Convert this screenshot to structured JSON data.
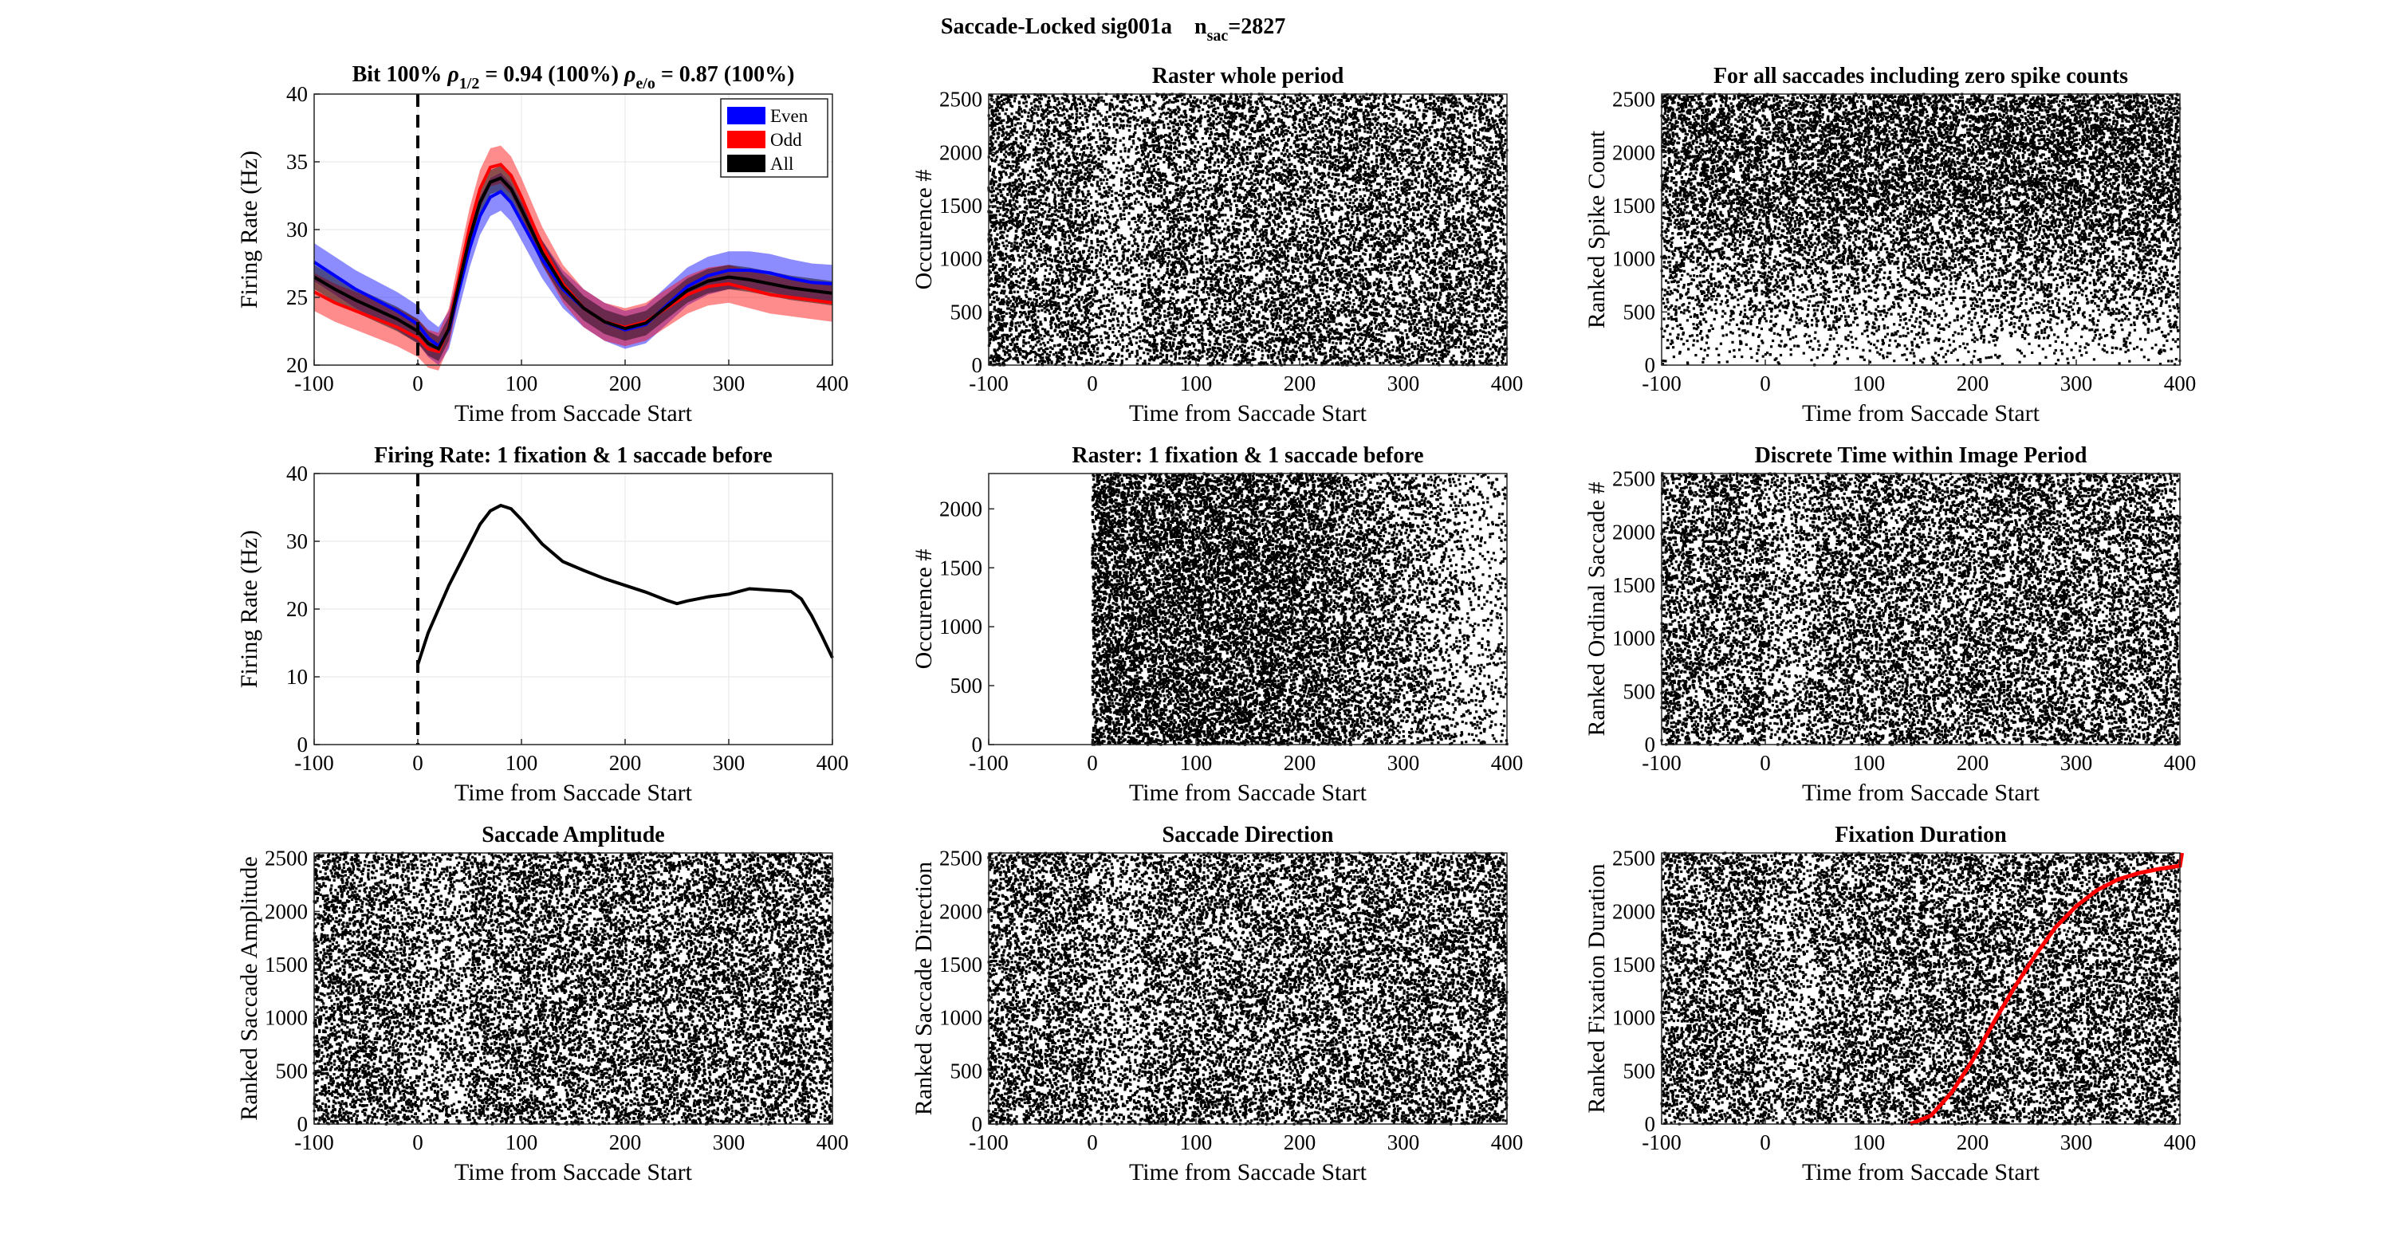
{
  "figure": {
    "title_main": "Saccade-Locked sig001a",
    "title_n": "n",
    "title_n_sub": "sac",
    "title_n_value": "=2827"
  },
  "chart_data": [
    {
      "id": "p1",
      "type": "line",
      "title_parts": [
        "Bit 100%",
        "ρ",
        "1/2",
        "= 0.94 (100%)",
        "ρ",
        "e/o",
        "= 0.87 (100%)"
      ],
      "xlabel": "Time from Saccade Start",
      "ylabel": "Firing Rate (Hz)",
      "xlim": [
        -100,
        400
      ],
      "ylim": [
        20,
        40
      ],
      "xticks": [
        -100,
        0,
        100,
        200,
        300,
        400
      ],
      "yticks": [
        20,
        25,
        30,
        35,
        40
      ],
      "grid": true,
      "vline_x": 0,
      "legend": "top-right",
      "x": [
        -100,
        -80,
        -60,
        -40,
        -20,
        0,
        10,
        20,
        30,
        40,
        50,
        60,
        70,
        80,
        90,
        100,
        120,
        140,
        160,
        180,
        200,
        220,
        240,
        260,
        280,
        300,
        320,
        340,
        360,
        380,
        400
      ],
      "series": [
        {
          "name": "Even",
          "color": "#0000ff",
          "band": 1.4,
          "values": [
            27.6,
            26.6,
            25.6,
            24.8,
            24.0,
            23.0,
            22.0,
            21.4,
            22.6,
            25.6,
            28.6,
            31.0,
            32.4,
            32.8,
            32.0,
            30.6,
            27.8,
            25.6,
            24.2,
            23.2,
            22.6,
            23.0,
            24.4,
            25.8,
            26.6,
            27.0,
            27.0,
            26.8,
            26.4,
            26.1,
            26.0
          ]
        },
        {
          "name": "Odd",
          "color": "#ff0000",
          "band": 1.4,
          "values": [
            25.4,
            24.6,
            24.0,
            23.4,
            22.8,
            22.0,
            21.2,
            21.0,
            22.8,
            26.6,
            30.2,
            33.0,
            34.6,
            34.8,
            34.0,
            32.4,
            28.8,
            26.0,
            24.2,
            23.2,
            22.8,
            23.2,
            24.2,
            25.2,
            25.8,
            26.0,
            25.6,
            25.2,
            25.0,
            24.8,
            24.6
          ]
        },
        {
          "name": "All",
          "color": "#000000",
          "band": 0.9,
          "values": [
            26.5,
            25.6,
            24.8,
            24.1,
            23.4,
            22.5,
            21.6,
            21.2,
            22.7,
            26.1,
            29.4,
            32.0,
            33.5,
            33.8,
            33.0,
            31.5,
            28.3,
            25.8,
            24.2,
            23.2,
            22.7,
            23.1,
            24.3,
            25.5,
            26.2,
            26.5,
            26.3,
            26.0,
            25.7,
            25.5,
            25.3
          ]
        }
      ]
    },
    {
      "id": "p2",
      "type": "scatter",
      "title": "Raster whole period",
      "xlabel": "Time from Saccade Start",
      "ylabel": "Occurence #",
      "xlim": [
        -100,
        400
      ],
      "ylim": [
        0,
        2550
      ],
      "xticks": [
        -100,
        0,
        100,
        200,
        300,
        400
      ],
      "yticks": [
        0,
        500,
        1000,
        1500,
        2000,
        2500
      ],
      "n_trials": 2550,
      "pattern": "uniform"
    },
    {
      "id": "p3",
      "type": "scatter",
      "title": "For all saccades including zero spike counts",
      "xlabel": "Time from Saccade Start",
      "ylabel": "Ranked Spike Count",
      "xlim": [
        -100,
        400
      ],
      "ylim": [
        0,
        2550
      ],
      "xticks": [
        -100,
        0,
        100,
        200,
        300,
        400
      ],
      "yticks": [
        0,
        500,
        1000,
        1500,
        2000,
        2500
      ],
      "n_trials": 2550,
      "pattern": "ranked-count"
    },
    {
      "id": "p4",
      "type": "line",
      "title": "Firing Rate: 1 fixation & 1 saccade before",
      "xlabel": "Time from Saccade Start",
      "ylabel": "Firing Rate (Hz)",
      "xlim": [
        -100,
        400
      ],
      "ylim": [
        0,
        40
      ],
      "xticks": [
        -100,
        0,
        100,
        200,
        300,
        400
      ],
      "yticks": [
        0,
        10,
        20,
        30,
        40
      ],
      "grid": true,
      "vline_x": 0,
      "x": [
        0,
        10,
        20,
        30,
        40,
        50,
        60,
        70,
        80,
        90,
        100,
        120,
        140,
        160,
        180,
        200,
        220,
        240,
        250,
        260,
        280,
        300,
        320,
        340,
        360,
        370,
        380,
        390,
        400
      ],
      "series": [
        {
          "color": "#000000",
          "values": [
            11.8,
            16.5,
            20.0,
            23.5,
            26.5,
            29.5,
            32.5,
            34.5,
            35.3,
            34.8,
            33.2,
            29.6,
            27.0,
            25.7,
            24.5,
            23.5,
            22.5,
            21.3,
            20.8,
            21.2,
            21.8,
            22.2,
            23.0,
            22.8,
            22.6,
            21.5,
            19.0,
            16.0,
            12.8
          ]
        }
      ]
    },
    {
      "id": "p5",
      "type": "scatter",
      "title": "Raster: 1 fixation & 1 saccade before",
      "xlabel": "Time from Saccade Start",
      "ylabel": "Occurence #",
      "xlim": [
        -100,
        400
      ],
      "ylim": [
        0,
        2300
      ],
      "xticks": [
        -100,
        0,
        100,
        200,
        300,
        400
      ],
      "yticks": [
        0,
        500,
        1000,
        1500,
        2000
      ],
      "n_trials": 2300,
      "pattern": "starts-at-zero"
    },
    {
      "id": "p6",
      "type": "scatter",
      "title": "Discrete Time within Image Period",
      "xlabel": "Time from Saccade Start",
      "ylabel": "Ranked Ordinal Saccade #",
      "xlim": [
        -100,
        400
      ],
      "ylim": [
        0,
        2550
      ],
      "xticks": [
        -100,
        0,
        100,
        200,
        300,
        400
      ],
      "yticks": [
        0,
        500,
        1000,
        1500,
        2000,
        2500
      ],
      "n_trials": 2550,
      "pattern": "uniform"
    },
    {
      "id": "p7",
      "type": "scatter",
      "title": "Saccade Amplitude",
      "xlabel": "Time from Saccade Start",
      "ylabel": "Ranked Saccade Amplitude",
      "xlim": [
        -100,
        400
      ],
      "ylim": [
        0,
        2550
      ],
      "xticks": [
        -100,
        0,
        100,
        200,
        300,
        400
      ],
      "yticks": [
        0,
        500,
        1000,
        1500,
        2000,
        2500
      ],
      "n_trials": 2550,
      "pattern": "uniform"
    },
    {
      "id": "p8",
      "type": "scatter",
      "title": "Saccade Direction",
      "xlabel": "Time from Saccade Start",
      "ylabel": "Ranked Saccade Direction",
      "xlim": [
        -100,
        400
      ],
      "ylim": [
        0,
        2550
      ],
      "xticks": [
        -100,
        0,
        100,
        200,
        300,
        400
      ],
      "yticks": [
        0,
        500,
        1000,
        1500,
        2000,
        2500
      ],
      "n_trials": 2550,
      "pattern": "uniform"
    },
    {
      "id": "p9",
      "type": "scatter",
      "title": "Fixation Duration",
      "xlabel": "Time from Saccade Start",
      "ylabel": "Ranked Fixation Duration",
      "xlim": [
        -100,
        400
      ],
      "ylim": [
        0,
        2550
      ],
      "xticks": [
        -100,
        0,
        100,
        200,
        300,
        400
      ],
      "yticks": [
        0,
        500,
        1000,
        1500,
        2000,
        2500
      ],
      "n_trials": 2550,
      "pattern": "uniform",
      "overlay": {
        "color": "#ff0000",
        "x": [
          140,
          160,
          180,
          200,
          220,
          240,
          260,
          280,
          300,
          320,
          340,
          360,
          380,
          400,
          402
        ],
        "y": [
          0,
          80,
          300,
          600,
          950,
          1280,
          1580,
          1850,
          2050,
          2200,
          2300,
          2360,
          2400,
          2430,
          2550
        ]
      }
    }
  ]
}
